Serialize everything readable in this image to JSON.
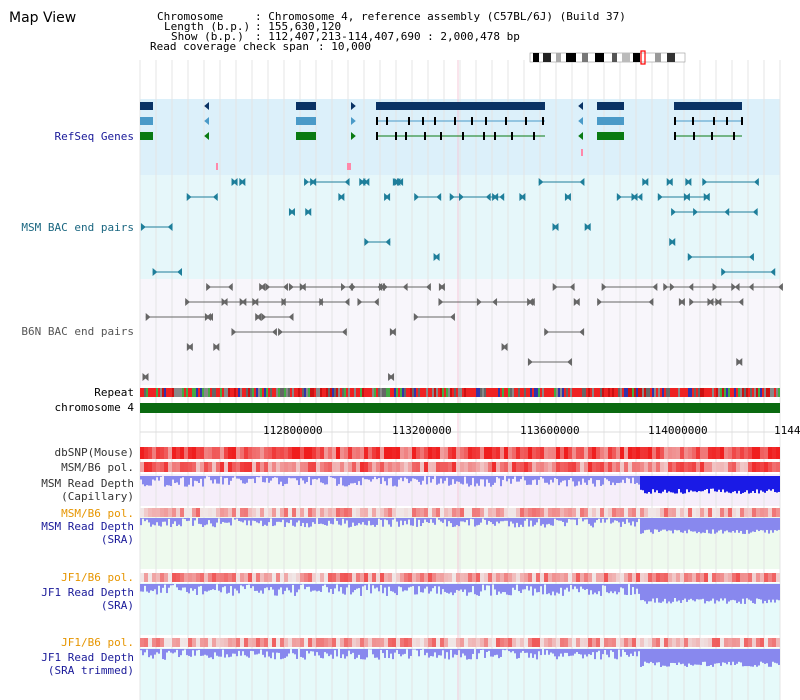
{
  "title": "Map View",
  "header": {
    "chromosome_label": "Chromosome",
    "chromosome_value": ": Chromosome 4, reference assembly (C57BL/6J) (Build 37)",
    "length_label": "Length (b.p.)",
    "length_value": ": 155,630,120",
    "show_label": "Show (b.p.)",
    "show_value": ": 112,407,213-114,407,690 : 2,000,478 bp",
    "coverage_label": "Read coverage check span",
    "coverage_value": ": 10,000"
  },
  "tracks": {
    "refseq": "RefSeq Genes",
    "msm_bac": "MSM BAC end pairs",
    "b6n_bac": "B6N BAC end pairs",
    "repeat": "Repeat",
    "chromosome": "chromosome 4",
    "dbsnp": "dbSNP(Mouse)",
    "msm_b6_pol": "MSM/B6 pol.",
    "msm_depth_cap_1": "MSM Read Depth",
    "msm_depth_cap_2": "(Capillary)",
    "msm_b6_pol2": "MSM/B6 pol.",
    "msm_depth_sra_1": "MSM Read Depth",
    "msm_depth_sra_2": "(SRA)",
    "jf1_b6_pol": "JF1/B6 pol.",
    "jf1_depth_sra_1": "JF1 Read Depth",
    "jf1_depth_sra_2": "(SRA)",
    "jf1_b6_pol2": "JF1/B6 pol.",
    "jf1_depth_trim_1": "JF1 Read Depth",
    "jf1_depth_trim_2": "(SRA trimmed)"
  },
  "axis": {
    "ticks": [
      "112800000",
      "113200000",
      "113600000",
      "114000000",
      "1144"
    ]
  },
  "colors": {
    "refseq_bg": "#dcf0fa",
    "msm_bg": "#e6f7fa",
    "b6n_bg": "#f8f6fb",
    "gene_navy": "#0a3264",
    "gene_teal": "#4a9ac8",
    "gene_green": "#0a7a12",
    "msm_feature": "#1e7e9a",
    "b6n_feature": "#666666",
    "chromosome_bar": "#0a6a10",
    "snp_red": "#ee3333",
    "depth_blue": "#8888ee",
    "depth_dark_blue": "#1a1ae6",
    "label_navy": "#1a1a99",
    "label_teal": "#1a6680",
    "label_orange": "#e69500"
  }
}
